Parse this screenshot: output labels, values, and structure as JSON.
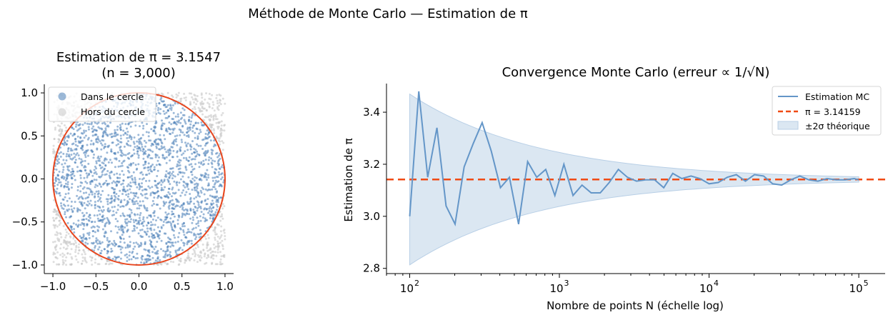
{
  "figure": {
    "suptitle": "Méthode de Monte Carlo — Estimation de π"
  },
  "colors": {
    "inside": "#4a80b8",
    "outside": "#c8c8c8",
    "circle": "#e8461e",
    "mc_line": "#6496c8",
    "pi_line": "#f04a14",
    "band": "#b8cfe6"
  },
  "chart_data": [
    {
      "type": "scatter",
      "title_line1": "Estimation de π = 3.1547",
      "title_line2": "(n = 3,000)",
      "pi_estimate": 3.1547,
      "n_points": 3000,
      "xlim": [
        -1.1,
        1.1
      ],
      "ylim": [
        -1.1,
        1.1
      ],
      "xticks": [
        -1.0,
        -0.5,
        0.0,
        0.5,
        1.0
      ],
      "xtick_labels": [
        "−1.0",
        "−0.5",
        "0.0",
        "0.5",
        "1.0"
      ],
      "yticks": [
        -1.0,
        -0.5,
        0.0,
        0.5,
        1.0
      ],
      "ytick_labels": [
        "−1.0",
        "−0.5",
        "0.0",
        "0.5",
        "1.0"
      ],
      "series": [
        {
          "name": "Dans le cercle"
        },
        {
          "name": "Hors du cercle"
        }
      ],
      "circle": {
        "center": [
          0,
          0
        ],
        "radius": 1
      },
      "legend_position": "top-left",
      "grid": false
    },
    {
      "type": "line",
      "title": "Convergence Monte Carlo (erreur ∝ 1/√N)",
      "xlabel": "Nombre de points N (échelle log)",
      "ylabel": "Estimation de π",
      "xscale": "log",
      "xlim": [
        70,
        150000
      ],
      "ylim": [
        2.78,
        3.51
      ],
      "xticks": [
        100,
        1000,
        10000,
        100000
      ],
      "xtick_labels": [
        {
          "base": "10",
          "exp": "2"
        },
        {
          "base": "10",
          "exp": "3"
        },
        {
          "base": "10",
          "exp": "4"
        },
        {
          "base": "10",
          "exp": "5"
        }
      ],
      "yticks": [
        2.8,
        3.0,
        3.2,
        3.4
      ],
      "ytick_labels": [
        "2.8",
        "3.0",
        "3.2",
        "3.4"
      ],
      "series": [
        {
          "name": "Estimation MC",
          "x": [
            100,
            115,
            132,
            152,
            175,
            201,
            231,
            266,
            305,
            351,
            404,
            464,
            534,
            614,
            706,
            811,
            933,
            1072,
            1233,
            1417,
            1630,
            1874,
            2154,
            2477,
            2848,
            3275,
            3765,
            4329,
            4977,
            5722,
            6579,
            7565,
            8697,
            10000,
            11498,
            13219,
            15199,
            17475,
            20092,
            23101,
            26561,
            30539,
            35112,
            40370,
            46416,
            53367,
            61359,
            70548,
            81113,
            93260,
            100000
          ],
          "y": [
            3.0,
            3.48,
            3.15,
            3.34,
            3.04,
            2.97,
            3.19,
            3.28,
            3.36,
            3.25,
            3.11,
            3.15,
            2.97,
            3.21,
            3.15,
            3.18,
            3.08,
            3.2,
            3.08,
            3.12,
            3.09,
            3.09,
            3.13,
            3.18,
            3.15,
            3.135,
            3.14,
            3.14,
            3.11,
            3.165,
            3.145,
            3.155,
            3.145,
            3.125,
            3.13,
            3.15,
            3.16,
            3.135,
            3.16,
            3.155,
            3.125,
            3.12,
            3.14,
            3.155,
            3.14,
            3.135,
            3.145,
            3.14,
            3.14,
            3.145,
            3.14
          ]
        },
        {
          "name": "π = 3.14159",
          "y_const": 3.14159
        },
        {
          "name": "±2σ théorique",
          "band_formula": "π ± 2·(1.64/√N)"
        }
      ],
      "legend_position": "top-right",
      "grid": false
    }
  ]
}
